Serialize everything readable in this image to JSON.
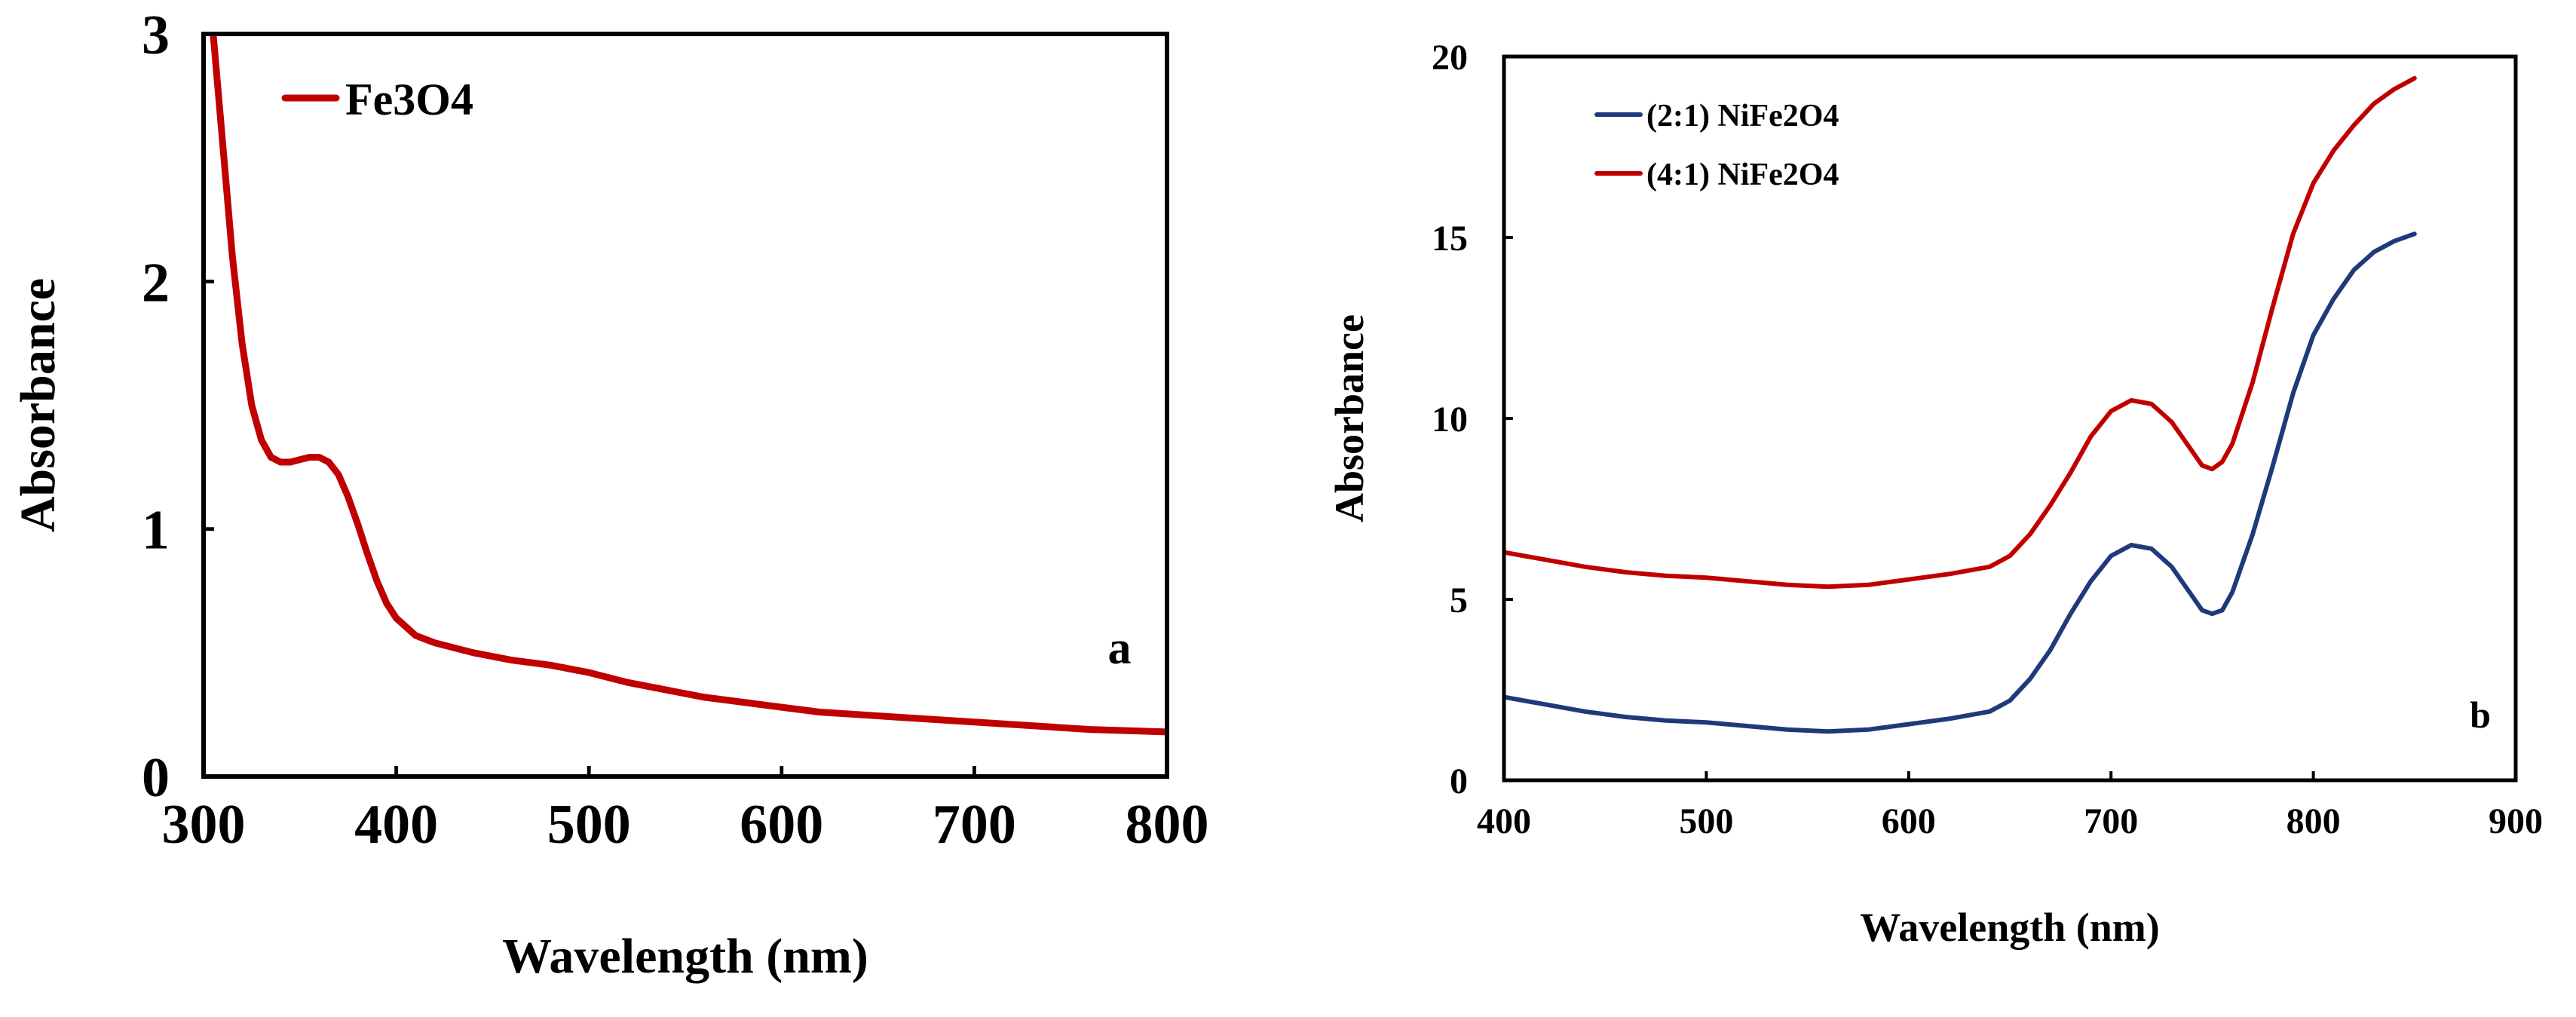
{
  "chart_data": [
    {
      "id": "a",
      "type": "line",
      "panel_label": "a",
      "xlabel": "Wavelength (nm)",
      "ylabel": "Absorbance",
      "xlim": [
        300,
        800
      ],
      "ylim": [
        0,
        3
      ],
      "xticks": [
        300,
        400,
        500,
        600,
        700,
        800
      ],
      "yticks": [
        0,
        1,
        2,
        3
      ],
      "grid": false,
      "legend_position": "top-left",
      "series": [
        {
          "name": "Fe3O4",
          "color": "#c00000",
          "x": [
            305,
            310,
            315,
            320,
            325,
            330,
            335,
            340,
            345,
            350,
            355,
            360,
            365,
            370,
            375,
            380,
            385,
            390,
            395,
            400,
            410,
            420,
            440,
            460,
            480,
            500,
            520,
            540,
            560,
            580,
            600,
            620,
            640,
            660,
            680,
            700,
            720,
            740,
            760,
            780,
            800
          ],
          "y": [
            3.0,
            2.55,
            2.1,
            1.75,
            1.5,
            1.36,
            1.29,
            1.27,
            1.27,
            1.28,
            1.29,
            1.29,
            1.27,
            1.22,
            1.13,
            1.02,
            0.9,
            0.79,
            0.7,
            0.64,
            0.57,
            0.54,
            0.5,
            0.47,
            0.45,
            0.42,
            0.38,
            0.35,
            0.32,
            0.3,
            0.28,
            0.26,
            0.25,
            0.24,
            0.23,
            0.22,
            0.21,
            0.2,
            0.19,
            0.185,
            0.18
          ]
        }
      ]
    },
    {
      "id": "b",
      "type": "line",
      "panel_label": "b",
      "xlabel": "Wavelength (nm)",
      "ylabel": "Absorbance",
      "xlim": [
        400,
        900
      ],
      "ylim": [
        0,
        20
      ],
      "xticks": [
        400,
        500,
        600,
        700,
        800,
        900
      ],
      "yticks": [
        0,
        5,
        10,
        15,
        20
      ],
      "grid": false,
      "legend_position": "top-left",
      "series": [
        {
          "name": "(2:1) NiFe2O4",
          "color": "#1f3a7a",
          "x": [
            400,
            420,
            440,
            460,
            480,
            500,
            520,
            540,
            560,
            580,
            600,
            620,
            640,
            650,
            660,
            670,
            680,
            690,
            700,
            710,
            720,
            730,
            740,
            745,
            750,
            755,
            760,
            770,
            780,
            790,
            800,
            810,
            820,
            830,
            840,
            850
          ],
          "y": [
            2.3,
            2.1,
            1.9,
            1.75,
            1.65,
            1.6,
            1.5,
            1.4,
            1.35,
            1.4,
            1.55,
            1.7,
            1.9,
            2.2,
            2.8,
            3.6,
            4.6,
            5.5,
            6.2,
            6.5,
            6.4,
            5.9,
            5.1,
            4.7,
            4.6,
            4.7,
            5.2,
            6.8,
            8.7,
            10.7,
            12.3,
            13.3,
            14.1,
            14.6,
            14.9,
            15.1
          ]
        },
        {
          "name": "(4:1) NiFe2O4",
          "color": "#c00000",
          "x": [
            400,
            420,
            440,
            460,
            480,
            500,
            520,
            540,
            560,
            580,
            600,
            620,
            640,
            650,
            660,
            670,
            680,
            690,
            700,
            710,
            720,
            730,
            740,
            745,
            750,
            755,
            760,
            770,
            780,
            790,
            800,
            810,
            820,
            830,
            840,
            850
          ],
          "y": [
            6.3,
            6.1,
            5.9,
            5.75,
            5.65,
            5.6,
            5.5,
            5.4,
            5.35,
            5.4,
            5.55,
            5.7,
            5.9,
            6.2,
            6.8,
            7.6,
            8.5,
            9.5,
            10.2,
            10.5,
            10.4,
            9.9,
            9.1,
            8.7,
            8.6,
            8.8,
            9.3,
            11.0,
            13.1,
            15.1,
            16.5,
            17.4,
            18.1,
            18.7,
            19.1,
            19.4
          ]
        }
      ]
    }
  ]
}
